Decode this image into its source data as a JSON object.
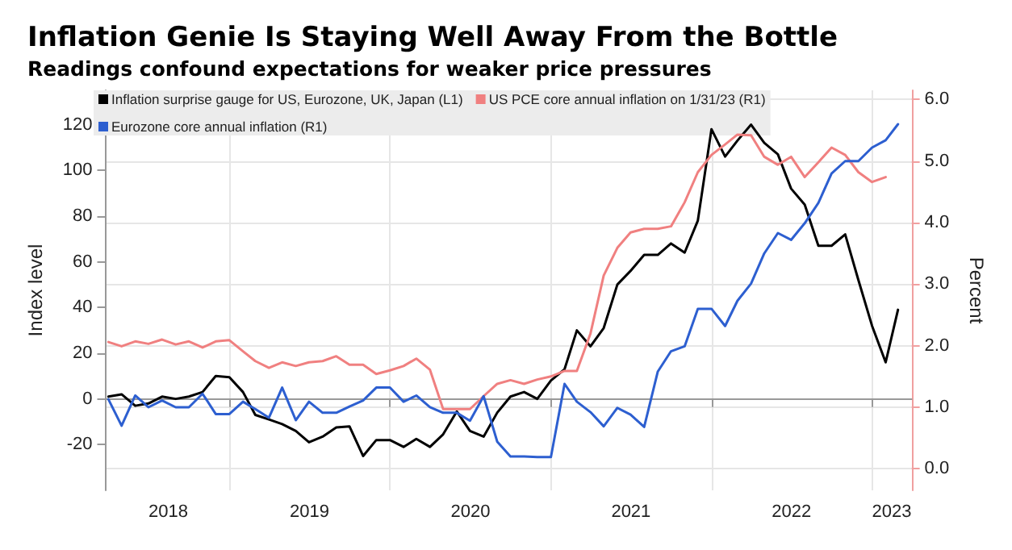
{
  "chart_data": {
    "type": "line",
    "title": "Inflation Genie Is Staying Well Away From the Bottle",
    "subtitle": "Readings confound expectations for weaker price pressures",
    "ylabel": "Index level",
    "y2label": "Percent",
    "x": [
      "2018-04",
      "2018-05",
      "2018-06",
      "2018-07",
      "2018-08",
      "2018-09",
      "2018-10",
      "2018-11",
      "2018-12",
      "2019-01",
      "2019-02",
      "2019-03",
      "2019-04",
      "2019-05",
      "2019-06",
      "2019-07",
      "2019-08",
      "2019-09",
      "2019-10",
      "2019-11",
      "2019-12",
      "2020-01",
      "2020-02",
      "2020-03",
      "2020-04",
      "2020-05",
      "2020-06",
      "2020-07",
      "2020-08",
      "2020-09",
      "2020-10",
      "2020-11",
      "2020-12",
      "2021-01",
      "2021-02",
      "2021-03",
      "2021-04",
      "2021-05",
      "2021-06",
      "2021-07",
      "2021-08",
      "2021-09",
      "2021-10",
      "2021-11",
      "2021-12",
      "2022-01",
      "2022-02",
      "2022-03",
      "2022-04",
      "2022-05",
      "2022-06",
      "2022-07",
      "2022-08",
      "2022-09",
      "2022-10",
      "2022-11",
      "2022-12",
      "2023-01",
      "2023-02",
      "2023-03"
    ],
    "series": [
      {
        "name": "Inflation surprise gauge for US, Eurozone, UK, Japan (L1)",
        "color": "#000000",
        "values": [
          1,
          2,
          -3,
          -2,
          1,
          0,
          1,
          3,
          10,
          9.5,
          3,
          -7,
          -9,
          -11,
          -14,
          -19,
          -16.5,
          -12.5,
          -12,
          -25,
          -18,
          -18,
          -21,
          -17.5,
          -21,
          -15.5,
          -5.5,
          -14,
          -16.5,
          -6,
          1,
          3,
          0,
          8,
          13,
          30,
          23,
          31,
          50,
          56,
          63,
          63,
          68,
          64,
          78,
          118,
          106,
          113,
          120,
          112,
          107,
          92,
          85,
          67,
          67,
          72,
          52,
          32,
          16,
          39
        ]
      },
      {
        "name": "US PCE core annual inflation on 1/31/23 (R1)",
        "color": "#f08080",
        "axis": "y2",
        "values": [
          2.06,
          1.99,
          2.07,
          2.03,
          2.1,
          2.02,
          2.07,
          1.97,
          2.07,
          2.09,
          1.91,
          1.75,
          1.64,
          1.73,
          1.67,
          1.73,
          1.75,
          1.83,
          1.69,
          1.69,
          1.54,
          1.6,
          1.67,
          1.79,
          1.61,
          0.97,
          0.97,
          0.97,
          1.18,
          1.38,
          1.44,
          1.38,
          1.45,
          1.5,
          1.59,
          1.59,
          2.2,
          3.14,
          3.59,
          3.84,
          3.9,
          3.9,
          3.94,
          4.33,
          4.82,
          5.1,
          5.27,
          5.43,
          5.42,
          5.07,
          4.94,
          5.07,
          4.74,
          4.98,
          5.22,
          5.1,
          4.82,
          4.66,
          4.74,
          null
        ]
      },
      {
        "name": "Eurozone core annual inflation (R1)",
        "color": "#2d5fd0",
        "axis": "y2",
        "values": [
          1.13,
          0.7,
          1.19,
          1.0,
          1.11,
          1.0,
          1.0,
          1.22,
          0.89,
          0.89,
          1.09,
          0.97,
          0.83,
          1.32,
          0.79,
          1.09,
          0.91,
          0.91,
          1.01,
          1.11,
          1.32,
          1.32,
          1.09,
          1.19,
          1.0,
          0.91,
          0.91,
          0.78,
          1.18,
          0.44,
          0.2,
          0.2,
          0.19,
          0.19,
          1.38,
          1.09,
          0.92,
          0.69,
          0.99,
          0.88,
          0.68,
          1.58,
          1.91,
          1.99,
          2.6,
          2.6,
          2.32,
          2.73,
          3.01,
          3.5,
          3.83,
          3.72,
          3.99,
          4.32,
          4.8,
          5.0,
          5.0,
          5.22,
          5.34,
          5.6
        ]
      }
    ],
    "xlim": [
      "2018-03-25",
      "2023-04-01"
    ],
    "xticks": [
      {
        "value": "2018-08-15",
        "label": "2018"
      },
      {
        "value": "2019-01-01",
        "label": null
      },
      {
        "value": "2019-07-02",
        "label": "2019"
      },
      {
        "value": "2020-01-01",
        "label": null
      },
      {
        "value": "2020-07-02",
        "label": "2020"
      },
      {
        "value": "2021-01-01",
        "label": null
      },
      {
        "value": "2021-07-02",
        "label": "2021"
      },
      {
        "value": "2022-01-01",
        "label": null
      },
      {
        "value": "2022-07-02",
        "label": "2022"
      },
      {
        "value": "2023-01-01",
        "label": null
      },
      {
        "value": "2023-02-15",
        "label": "2023"
      }
    ],
    "ylim": [
      -40,
      135
    ],
    "yticks": [
      -20,
      0,
      20,
      40,
      60,
      80,
      100,
      120
    ],
    "y2lim": [
      -0.35,
      6.15
    ],
    "y2ticks": [
      {
        "value": 0,
        "label": "0.0"
      },
      {
        "value": 1,
        "label": "1.0"
      },
      {
        "value": 2,
        "label": "2.0"
      },
      {
        "value": 3,
        "label": "3.0"
      },
      {
        "value": 4,
        "label": "4.0"
      },
      {
        "value": 5,
        "label": "5.0"
      },
      {
        "value": 6,
        "label": "6.0"
      }
    ],
    "grid": true,
    "legend": "top left",
    "marker": "none",
    "line_style": "solid"
  }
}
